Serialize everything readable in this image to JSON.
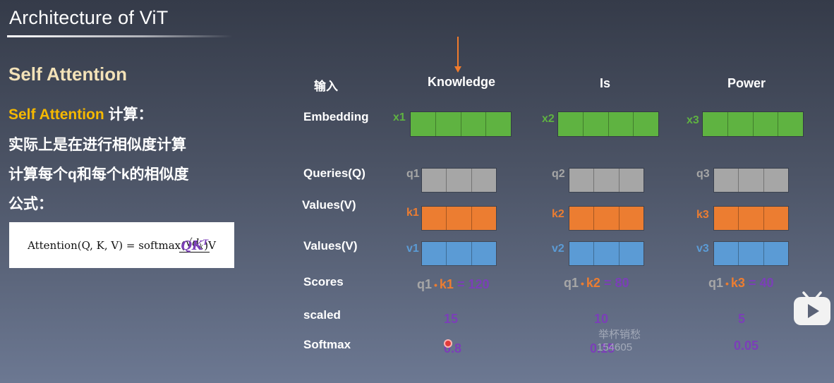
{
  "slide": {
    "title": "Architecture of ViT",
    "heading": "Self Attention",
    "line1_gold": "Self Attention",
    "line1_rest": " 计算：",
    "line2": "实际上是在进行相似度计算",
    "line3": "计算每个q和每个k的相似度",
    "line4": "公式：",
    "formula": {
      "prefix": "Attention(Q, K, V) = softmax(",
      "numerator": "QK",
      "numerator_sup": "T",
      "denominator": "√d",
      "denominator_sub": "k",
      "suffix": ")V"
    }
  },
  "diagram": {
    "row_labels": {
      "input": "输入",
      "embedding": "Embedding",
      "queries": "Queries(Q)",
      "keys": "Values(V)",
      "values": "Values(V)",
      "scores": "Scores",
      "scaled": "scaled",
      "softmax": "Softmax"
    },
    "tokens": [
      {
        "word": "Knowledge",
        "x": "x1",
        "q": "q1",
        "k": "k1",
        "v": "v1",
        "score_q": "q1",
        "score_dot": "•",
        "score_k": "k1",
        "score_val": "= 120",
        "scaled": "15",
        "softmax": "0.8"
      },
      {
        "word": "Is",
        "x": "x2",
        "q": "q2",
        "k": "k2",
        "v": "v2",
        "score_q": "q1",
        "score_dot": "•",
        "score_k": "k2",
        "score_val": "= 80",
        "scaled": "10",
        "softmax": "0.15"
      },
      {
        "word": "Power",
        "x": "x3",
        "q": "q3",
        "k": "k3",
        "v": "v3",
        "score_q": "q1",
        "score_dot": "•",
        "score_k": "k3",
        "score_val": "= 40",
        "scaled": "5",
        "softmax": "0.05"
      }
    ],
    "colors": {
      "embedding": "#5fb341",
      "query": "#a6a6a6",
      "key": "#ec7d31",
      "value": "#5b9bd5",
      "number": "#7b3fb8",
      "arrow": "#f07b2c"
    }
  },
  "watermark": {
    "line1": "举杯销愁",
    "line2": "154605"
  },
  "player": {
    "icon": "bilibili-play-icon"
  }
}
